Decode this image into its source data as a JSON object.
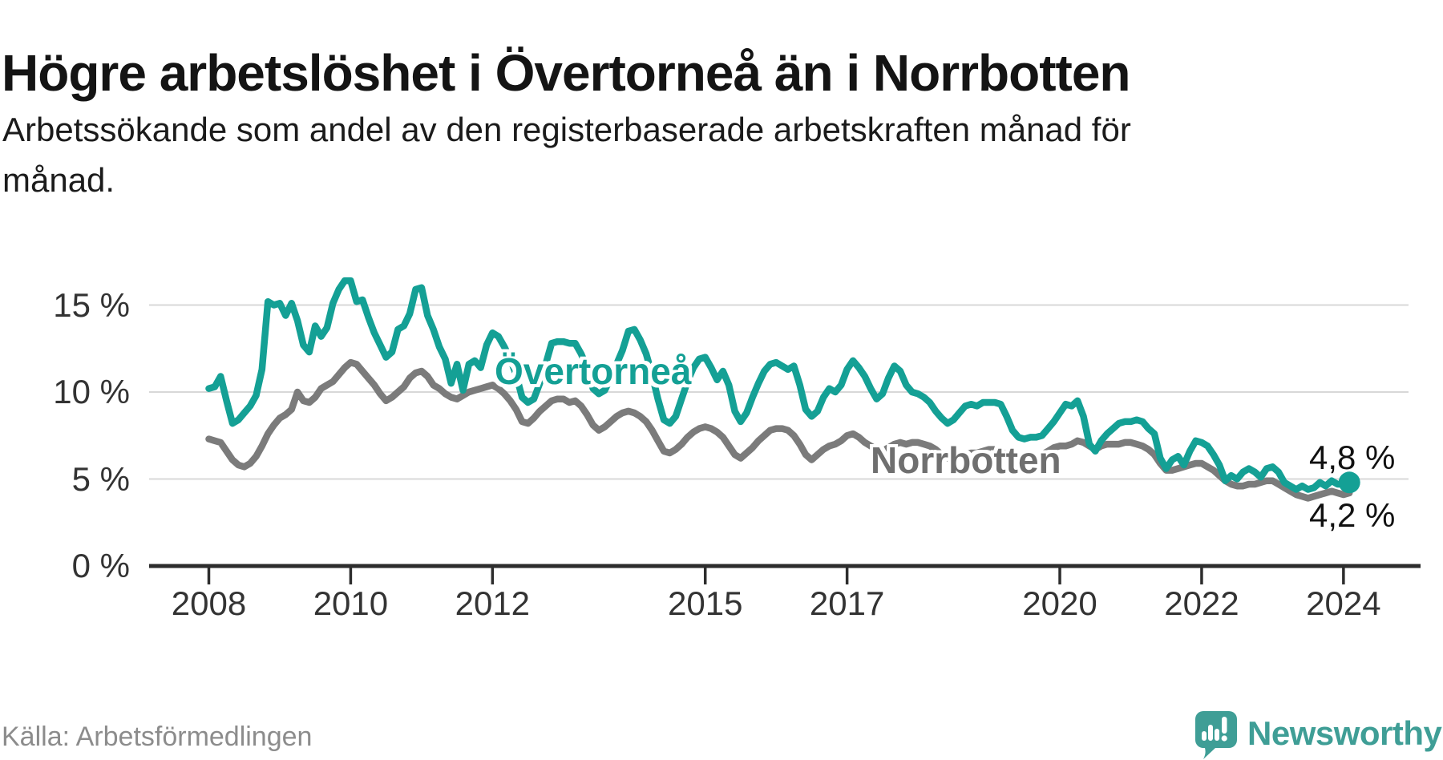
{
  "header": {
    "title": "Högre arbetslöshet i Övertorneå än i Norrbotten",
    "subtitle_line1": "Arbetssökande som andel av den registerbaserade arbetskraften månad för",
    "subtitle_line2": "månad."
  },
  "chart_data": {
    "type": "line",
    "title": "Högre arbetslöshet i Övertorneå än i Norrbotten",
    "subtitle": "Arbetssökande som andel av den registerbaserade arbetskraften månad för månad.",
    "frequency": "monthly",
    "x_start": "2008-01",
    "x_end": "2024-02",
    "x_ticks": [
      2008,
      2010,
      2012,
      2015,
      2017,
      2020,
      2022,
      2024
    ],
    "x_tick_labels": [
      "2008",
      "2010",
      "2012",
      "2015",
      "2017",
      "2020",
      "2022",
      "2024"
    ],
    "y_ticks": [
      0,
      5,
      10,
      15
    ],
    "y_tick_labels": [
      "0 %",
      "5 %",
      "10 %",
      "15 %"
    ],
    "ylim": [
      0,
      17.5
    ],
    "grid": true,
    "legend_position": "inline-labels",
    "series": [
      {
        "id": "norrbotten",
        "name": "Norrbotten",
        "color": "#7b7b7b",
        "end_dot": false,
        "end_value_label": "4,2 %",
        "values": [
          7.3,
          7.2,
          7.1,
          6.6,
          6.1,
          5.8,
          5.7,
          5.9,
          6.3,
          6.9,
          7.6,
          8.1,
          8.5,
          8.7,
          9.0,
          10.0,
          9.5,
          9.4,
          9.7,
          10.2,
          10.4,
          10.6,
          11.0,
          11.4,
          11.7,
          11.6,
          11.2,
          10.8,
          10.4,
          9.9,
          9.5,
          9.7,
          10.0,
          10.3,
          10.8,
          11.1,
          11.2,
          10.9,
          10.4,
          10.2,
          9.9,
          9.7,
          9.6,
          9.8,
          10.0,
          10.1,
          10.2,
          10.3,
          10.4,
          10.2,
          9.9,
          9.5,
          9.0,
          8.3,
          8.2,
          8.5,
          8.9,
          9.2,
          9.5,
          9.6,
          9.6,
          9.4,
          9.5,
          9.2,
          8.7,
          8.1,
          7.8,
          8.0,
          8.3,
          8.6,
          8.8,
          8.9,
          8.8,
          8.6,
          8.3,
          7.8,
          7.2,
          6.6,
          6.5,
          6.7,
          7.0,
          7.4,
          7.7,
          7.9,
          8.0,
          7.9,
          7.7,
          7.4,
          6.9,
          6.4,
          6.2,
          6.5,
          6.8,
          7.2,
          7.5,
          7.8,
          7.9,
          7.9,
          7.8,
          7.5,
          7.0,
          6.4,
          6.1,
          6.4,
          6.7,
          6.9,
          7.0,
          7.2,
          7.5,
          7.6,
          7.4,
          7.1,
          6.9,
          6.7,
          6.6,
          6.8,
          7.0,
          7.1,
          7.0,
          7.1,
          7.1,
          7.0,
          6.9,
          6.7,
          6.4,
          6.2,
          6.2,
          6.3,
          6.4,
          6.5,
          6.5,
          6.6,
          6.7,
          6.7,
          6.6,
          6.4,
          6.2,
          6.1,
          6.1,
          6.2,
          6.3,
          6.4,
          6.6,
          6.8,
          6.9,
          6.9,
          7.0,
          7.2,
          7.1,
          6.9,
          6.7,
          6.9,
          7.0,
          7.0,
          7.0,
          7.1,
          7.1,
          7.0,
          6.9,
          6.7,
          6.4,
          5.9,
          5.5,
          5.5,
          5.6,
          5.7,
          5.8,
          5.9,
          5.9,
          5.7,
          5.5,
          5.2,
          4.9,
          4.7,
          4.6,
          4.6,
          4.7,
          4.7,
          4.8,
          4.9,
          4.9,
          4.7,
          4.5,
          4.3,
          4.1,
          4.0,
          3.9,
          4.0,
          4.1,
          4.2,
          4.3,
          4.2,
          4.1,
          4.2
        ]
      },
      {
        "id": "overtornea",
        "name": "Övertorneå",
        "color": "#14a095",
        "end_dot": true,
        "end_value_label": "4,8 %",
        "values": [
          10.2,
          10.3,
          10.9,
          9.5,
          8.2,
          8.4,
          8.8,
          9.2,
          9.8,
          11.3,
          15.2,
          15.0,
          15.1,
          14.4,
          15.1,
          14.1,
          12.7,
          12.3,
          13.8,
          13.2,
          13.7,
          15.1,
          15.9,
          16.4,
          16.4,
          15.2,
          15.3,
          14.3,
          13.4,
          12.7,
          12.0,
          12.3,
          13.6,
          13.8,
          14.5,
          15.9,
          16.0,
          14.4,
          13.6,
          12.6,
          11.9,
          10.5,
          11.6,
          10.1,
          11.6,
          11.8,
          11.4,
          12.7,
          13.4,
          13.2,
          12.6,
          11.9,
          11.0,
          9.7,
          9.4,
          9.6,
          10.5,
          11.6,
          12.8,
          12.9,
          12.9,
          12.8,
          12.8,
          12.2,
          11.4,
          10.2,
          9.9,
          10.1,
          10.8,
          11.6,
          12.4,
          13.5,
          13.6,
          13.0,
          12.2,
          11.0,
          9.6,
          8.4,
          8.2,
          8.6,
          9.6,
          10.6,
          11.4,
          11.9,
          12.0,
          11.4,
          10.7,
          11.2,
          10.4,
          8.9,
          8.3,
          8.8,
          9.7,
          10.5,
          11.2,
          11.6,
          11.7,
          11.5,
          11.3,
          11.5,
          10.4,
          9.0,
          8.6,
          8.9,
          9.7,
          10.2,
          10.0,
          10.4,
          11.3,
          11.8,
          11.4,
          10.9,
          10.2,
          9.6,
          9.9,
          10.8,
          11.5,
          11.2,
          10.4,
          10.0,
          9.9,
          9.7,
          9.4,
          8.9,
          8.5,
          8.2,
          8.4,
          8.8,
          9.2,
          9.3,
          9.2,
          9.4,
          9.4,
          9.4,
          9.3,
          8.6,
          7.8,
          7.4,
          7.3,
          7.4,
          7.4,
          7.5,
          7.9,
          8.3,
          8.8,
          9.3,
          9.2,
          9.5,
          8.6,
          7.0,
          6.6,
          7.2,
          7.6,
          7.9,
          8.2,
          8.3,
          8.3,
          8.4,
          8.3,
          7.9,
          7.6,
          6.2,
          5.6,
          6.1,
          6.3,
          5.8,
          6.6,
          7.2,
          7.1,
          6.9,
          6.4,
          5.8,
          4.9,
          5.2,
          5.0,
          5.4,
          5.6,
          5.4,
          5.1,
          5.6,
          5.7,
          5.4,
          4.8,
          4.6,
          4.4,
          4.6,
          4.4,
          4.5,
          4.8,
          4.6,
          4.9,
          4.7,
          4.7,
          4.8
        ]
      }
    ]
  },
  "labels": {
    "overtornea": "Övertorneå",
    "norrbotten": "Norrbotten",
    "end_top": "4,8 %",
    "end_bottom": "4,2 %"
  },
  "footer": {
    "source": "Källa: Arbetsförmedlingen",
    "brand": "Newsworthy"
  },
  "colors": {
    "overtornea": "#14a095",
    "norrbotten": "#7b7b7b",
    "grid": "#d8d8d8",
    "axis": "#2d2d2d",
    "brand": "#3f9e96"
  }
}
